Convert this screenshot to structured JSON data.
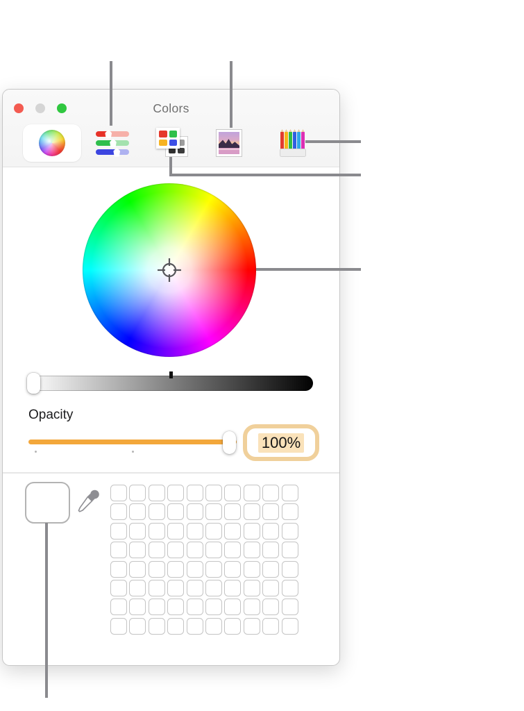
{
  "window": {
    "title": "Colors"
  },
  "titlebar": {
    "traffic_lights": [
      {
        "name": "close-button",
        "color": "#f35b51"
      },
      {
        "name": "minimize-button",
        "color": "#d5d5d5"
      },
      {
        "name": "zoom-button",
        "color": "#30c740"
      }
    ]
  },
  "toolbar": {
    "items": [
      {
        "id": "color-wheel",
        "icon": "color-wheel-icon",
        "selected": true
      },
      {
        "id": "color-sliders",
        "icon": "color-sliders-icon",
        "selected": false
      },
      {
        "id": "color-palettes",
        "icon": "color-palettes-icon",
        "selected": false
      },
      {
        "id": "image-palettes",
        "icon": "image-palettes-icon",
        "selected": false
      },
      {
        "id": "pencils",
        "icon": "pencils-icon",
        "selected": false
      }
    ],
    "sliders_icon_rows": [
      {
        "track_left": "#e73229",
        "track_right": "#f6b0a9",
        "thumb_pct": 38
      },
      {
        "track_left": "#2fbe4d",
        "track_right": "#a4e2ae",
        "thumb_pct": 52
      },
      {
        "track_left": "#3c45e0",
        "track_right": "#aeb2f0",
        "thumb_pct": 63
      }
    ],
    "palette_icon_front_colors": [
      "#e5392b",
      "#2fc04b",
      "#f7b322",
      "#3d4fe5"
    ],
    "palette_icon_back_colors": [
      "#c4c4c4",
      "#9e9e9e",
      "#303030",
      "#3c3c3c"
    ],
    "pencil_colors": [
      "#e23b2e",
      "#f6b519",
      "#2fbe45",
      "#2f5fe0",
      "#2fa6e8",
      "#dd2fb4"
    ]
  },
  "grayscale_slider": {
    "thumb_position": "min",
    "center_tick": true
  },
  "opacity": {
    "label": "Opacity",
    "value": "100%",
    "percent": 100
  },
  "swatches": {
    "rows": 8,
    "cols": 10,
    "well_color": "#ffffff"
  },
  "colors": {
    "accent_orange": "#f3a73b",
    "focus_ring": "#f0d09b",
    "text_selection_highlight": "#fae2ba",
    "callout_line": "#8a8a8e"
  },
  "callouts": [
    "color-sliders-button",
    "image-palettes-button",
    "pencils-button",
    "color-palettes-button",
    "color-wheel",
    "color-well"
  ]
}
